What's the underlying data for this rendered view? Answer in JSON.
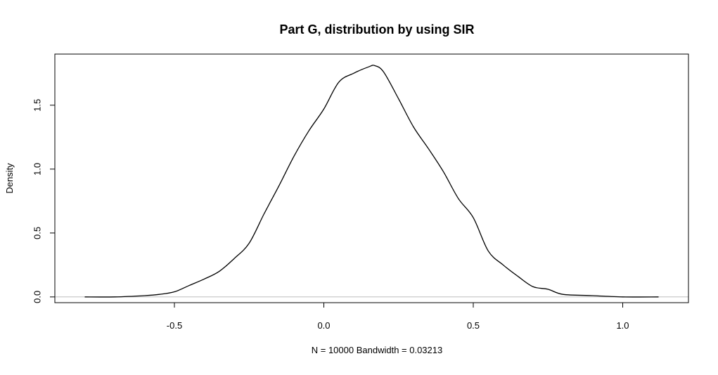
{
  "chart_data": {
    "type": "line",
    "title": "Part G, distribution by using SIR",
    "xlabel": "N = 10000   Bandwidth = 0.03213",
    "ylabel": "Density",
    "xlim": [
      -0.9,
      1.22
    ],
    "ylim": [
      -0.045,
      1.9
    ],
    "x_ticks": [
      -0.5,
      0.0,
      0.5,
      1.0
    ],
    "x_tick_labels": [
      "-0.5",
      "0.0",
      "0.5",
      "1.0"
    ],
    "y_ticks": [
      0.0,
      0.5,
      1.0,
      1.5
    ],
    "y_tick_labels": [
      "0.0",
      "0.5",
      "1.0",
      "1.5"
    ],
    "grid": false,
    "legend": "none",
    "baseline": 0,
    "colors": {
      "line": "#000000",
      "baseline": "#bebebe",
      "frame": "#000000"
    },
    "series": [
      {
        "x": [
          -0.8,
          -0.7,
          -0.6,
          -0.55,
          -0.5,
          -0.45,
          -0.4,
          -0.35,
          -0.3,
          -0.25,
          -0.2,
          -0.15,
          -0.1,
          -0.05,
          0.0,
          0.05,
          0.1,
          0.15,
          0.17,
          0.2,
          0.25,
          0.3,
          0.35,
          0.4,
          0.45,
          0.5,
          0.55,
          0.6,
          0.65,
          0.7,
          0.75,
          0.8,
          0.9,
          1.0,
          1.12
        ],
        "y": [
          0.0,
          0.0,
          0.01,
          0.02,
          0.04,
          0.09,
          0.14,
          0.2,
          0.3,
          0.42,
          0.65,
          0.87,
          1.1,
          1.3,
          1.47,
          1.68,
          1.75,
          1.8,
          1.81,
          1.76,
          1.55,
          1.33,
          1.16,
          0.98,
          0.77,
          0.62,
          0.36,
          0.25,
          0.16,
          0.08,
          0.06,
          0.02,
          0.01,
          0.0,
          0.0
        ]
      }
    ]
  }
}
